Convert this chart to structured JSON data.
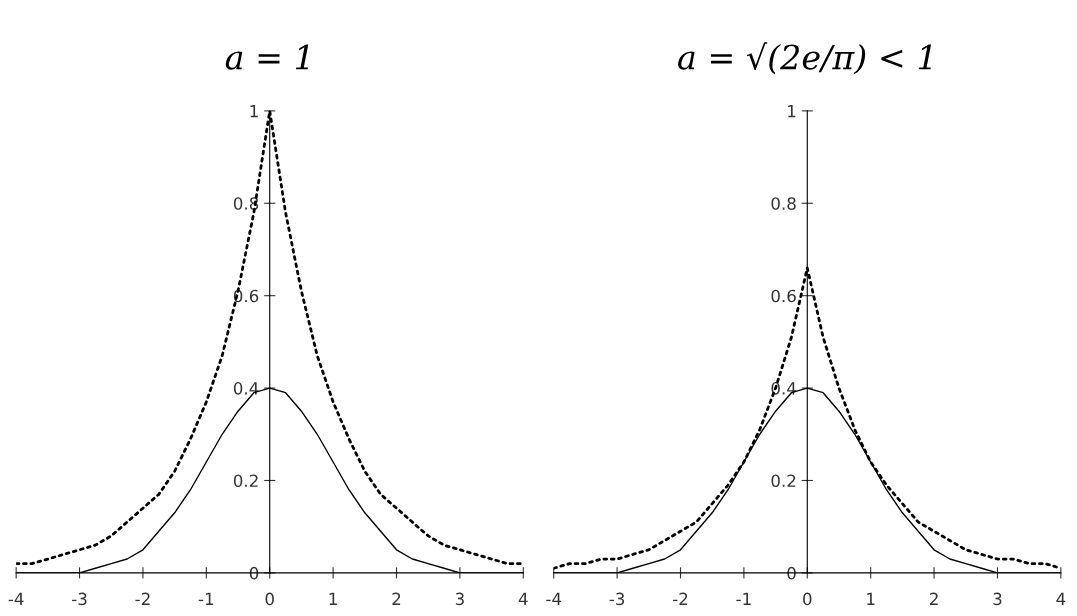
{
  "chart_data": [
    {
      "type": "line",
      "title": "a = 1",
      "x": [
        -4,
        -3.75,
        -3.5,
        -3.25,
        -3,
        -2.75,
        -2.5,
        -2.25,
        -2,
        -1.75,
        -1.5,
        -1.25,
        -1,
        -0.75,
        -0.5,
        -0.25,
        0,
        0.25,
        0.5,
        0.75,
        1,
        1.25,
        1.5,
        1.75,
        2,
        2.25,
        2.5,
        2.75,
        3,
        3.25,
        3.5,
        3.75,
        4
      ],
      "series": [
        {
          "color": "#000000",
          "line_style": "solid",
          "values": [
            0,
            0,
            0,
            0,
            0,
            0.01,
            0.02,
            0.03,
            0.05,
            0.09,
            0.13,
            0.18,
            0.24,
            0.3,
            0.35,
            0.39,
            0.4,
            0.39,
            0.35,
            0.3,
            0.24,
            0.18,
            0.13,
            0.09,
            0.05,
            0.03,
            0.02,
            0.01,
            0,
            0,
            0,
            0,
            0
          ]
        },
        {
          "color": "#000000",
          "line_style": "dotted",
          "values": [
            0.02,
            0.02,
            0.03,
            0.04,
            0.05,
            0.06,
            0.08,
            0.11,
            0.14,
            0.17,
            0.22,
            0.29,
            0.37,
            0.47,
            0.61,
            0.78,
            1,
            0.78,
            0.61,
            0.47,
            0.37,
            0.29,
            0.22,
            0.17,
            0.14,
            0.11,
            0.08,
            0.06,
            0.05,
            0.04,
            0.03,
            0.02,
            0.02
          ]
        }
      ],
      "xlim": [
        -4,
        4
      ],
      "ylim": [
        0,
        1
      ],
      "xticks": [
        -4,
        -3,
        -2,
        -1,
        0,
        1,
        2,
        3,
        4
      ],
      "yticks": [
        0,
        0.2,
        0.4,
        0.6,
        0.8,
        1
      ]
    },
    {
      "type": "line",
      "title": "a = √(2e/π) < 1",
      "x": [
        -4,
        -3.75,
        -3.5,
        -3.25,
        -3,
        -2.75,
        -2.5,
        -2.25,
        -2,
        -1.75,
        -1.5,
        -1.25,
        -1,
        -0.75,
        -0.5,
        -0.25,
        0,
        0.25,
        0.5,
        0.75,
        1,
        1.25,
        1.5,
        1.75,
        2,
        2.25,
        2.5,
        2.75,
        3,
        3.25,
        3.5,
        3.75,
        4
      ],
      "series": [
        {
          "color": "#000000",
          "line_style": "solid",
          "values": [
            0,
            0,
            0,
            0,
            0,
            0.01,
            0.02,
            0.03,
            0.05,
            0.09,
            0.13,
            0.18,
            0.24,
            0.3,
            0.35,
            0.39,
            0.4,
            0.39,
            0.35,
            0.3,
            0.24,
            0.18,
            0.13,
            0.09,
            0.05,
            0.03,
            0.02,
            0.01,
            0,
            0,
            0,
            0,
            0
          ]
        },
        {
          "color": "#000000",
          "line_style": "dotted",
          "values": [
            0.01,
            0.02,
            0.02,
            0.03,
            0.03,
            0.04,
            0.05,
            0.07,
            0.09,
            0.11,
            0.15,
            0.19,
            0.24,
            0.31,
            0.4,
            0.51,
            0.66,
            0.51,
            0.4,
            0.31,
            0.24,
            0.19,
            0.15,
            0.11,
            0.09,
            0.07,
            0.05,
            0.04,
            0.03,
            0.03,
            0.02,
            0.02,
            0.01
          ]
        }
      ],
      "xlim": [
        -4,
        4
      ],
      "ylim": [
        0,
        1
      ],
      "xticks": [
        -4,
        -3,
        -2,
        -1,
        0,
        1,
        2,
        3,
        4
      ],
      "yticks": [
        0,
        0.2,
        0.4,
        0.6,
        0.8,
        1
      ]
    }
  ]
}
